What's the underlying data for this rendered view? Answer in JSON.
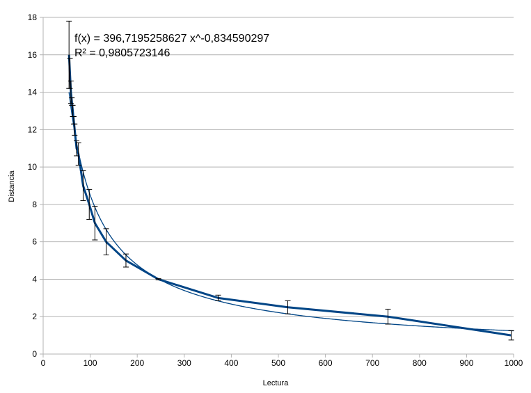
{
  "chart_data": {
    "type": "scatter",
    "xlabel": "Lectura",
    "ylabel": "Distancia",
    "xlim": [
      0,
      1000
    ],
    "ylim": [
      0,
      18
    ],
    "x_ticks": [
      "0",
      "100",
      "200",
      "300",
      "400",
      "500",
      "600",
      "700",
      "800",
      "900",
      "1000"
    ],
    "y_ticks": [
      "0",
      "2",
      "4",
      "6",
      "8",
      "10",
      "12",
      "14",
      "16",
      "18"
    ],
    "grid": "horizontal",
    "series": [
      {
        "points": [
          {
            "x": 55,
            "y": 16,
            "err": 1.8
          },
          {
            "x": 57,
            "y": 15,
            "err": 0.8
          },
          {
            "x": 59,
            "y": 14,
            "err": 0.6
          },
          {
            "x": 61,
            "y": 13.5,
            "err": 0.2
          },
          {
            "x": 63,
            "y": 13,
            "err": 0.3
          },
          {
            "x": 65,
            "y": 12.5,
            "err": 0.2
          },
          {
            "x": 67,
            "y": 12,
            "err": 0.3
          },
          {
            "x": 71,
            "y": 11,
            "err": 0.4
          },
          {
            "x": 75,
            "y": 10.7,
            "err": 0.6
          },
          {
            "x": 85,
            "y": 9,
            "err": 0.8
          },
          {
            "x": 98,
            "y": 8,
            "err": 0.8
          },
          {
            "x": 110,
            "y": 7,
            "err": 0.9
          },
          {
            "x": 134,
            "y": 6,
            "err": 0.7
          },
          {
            "x": 176,
            "y": 5,
            "err": 0.35
          },
          {
            "x": 245,
            "y": 4,
            "err": 0.03
          },
          {
            "x": 372,
            "y": 3,
            "err": 0.15
          },
          {
            "x": 520,
            "y": 2.5,
            "err": 0.35
          },
          {
            "x": 733,
            "y": 2,
            "err": 0.4
          },
          {
            "x": 995,
            "y": 1,
            "err": 0.25
          }
        ],
        "color": "#004586"
      }
    ],
    "trendline": {
      "type": "power",
      "a": 396.7195258627,
      "b": -0.834590297,
      "x_range": [
        55,
        1000
      ],
      "color": "#004586",
      "equation": "f(x) = 396,7195258627 x^-0,834590297",
      "r_squared": "R² = 0,9805723146"
    }
  }
}
